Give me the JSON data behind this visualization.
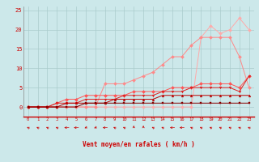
{
  "bg_color": "#cce8ea",
  "grid_color": "#aacccc",
  "x_values": [
    0,
    1,
    2,
    3,
    4,
    5,
    6,
    7,
    8,
    9,
    10,
    11,
    12,
    13,
    14,
    15,
    16,
    17,
    18,
    19,
    20,
    21,
    22,
    23
  ],
  "xlabel": "Vent moyen/en rafales ( km/h )",
  "ylabel_ticks": [
    0,
    5,
    10,
    15,
    20,
    25
  ],
  "xlim": [
    -0.5,
    23.5
  ],
  "ylim": [
    -2.5,
    26
  ],
  "line1_y": [
    0,
    0,
    0,
    0,
    0,
    0,
    0,
    0,
    0,
    0,
    0,
    0,
    0,
    0,
    0,
    0,
    0,
    0,
    18,
    21,
    19,
    20,
    23,
    20
  ],
  "line2_y": [
    0,
    0,
    0,
    0,
    0,
    0,
    0,
    0,
    6,
    6,
    6,
    7,
    8,
    9,
    11,
    13,
    13,
    16,
    18,
    18,
    18,
    18,
    13,
    5
  ],
  "line3_y": [
    0,
    0,
    0,
    1,
    2,
    2,
    3,
    3,
    3,
    3,
    3,
    4,
    4,
    4,
    4,
    5,
    5,
    5,
    6,
    6,
    6,
    6,
    5,
    8
  ],
  "line4_y": [
    0,
    0,
    0,
    1,
    1,
    1,
    2,
    2,
    2,
    2,
    3,
    3,
    3,
    3,
    4,
    4,
    4,
    5,
    5,
    5,
    5,
    5,
    4,
    8
  ],
  "line5_y": [
    0,
    0,
    0,
    0,
    1,
    1,
    1,
    1,
    1,
    2,
    2,
    2,
    2,
    2,
    3,
    3,
    3,
    3,
    3,
    3,
    3,
    3,
    3,
    3
  ],
  "line6_y": [
    0,
    0,
    0,
    0,
    0,
    0,
    1,
    1,
    1,
    1,
    1,
    1,
    1,
    1,
    1,
    1,
    1,
    1,
    1,
    1,
    1,
    1,
    1,
    1
  ],
  "line1_color": "#ffaaaa",
  "line2_color": "#ff8888",
  "line3_color": "#ff5555",
  "line4_color": "#dd2222",
  "line5_color": "#bb0000",
  "line6_color": "#880000",
  "wind_arrows_deg": [
    225,
    225,
    225,
    225,
    270,
    270,
    315,
    315,
    270,
    225,
    225,
    180,
    180,
    225,
    225,
    270,
    270,
    225,
    225,
    225,
    225,
    225,
    225,
    225
  ]
}
